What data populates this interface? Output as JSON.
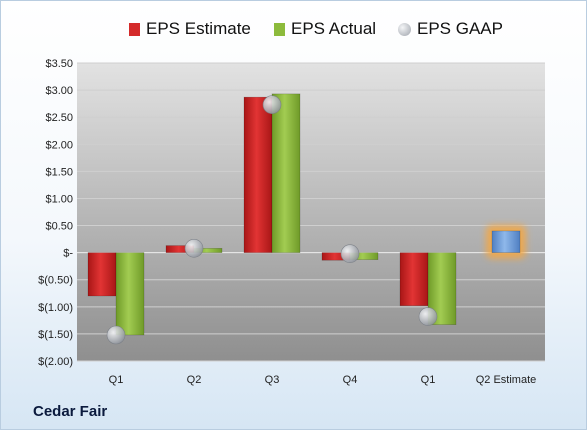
{
  "company": "Cedar Fair",
  "legend": [
    {
      "label": "EPS Estimate",
      "color": "#d42a2a",
      "marker": "bar"
    },
    {
      "label": "EPS Actual",
      "color": "#8dbb3c",
      "marker": "bar"
    },
    {
      "label": "EPS GAAP",
      "color": "#b8bcc4",
      "marker": "dot"
    }
  ],
  "chart_data": {
    "type": "bar",
    "categories": [
      "Q1",
      "Q2",
      "Q3",
      "Q4",
      "Q1",
      "Q2 Estimate"
    ],
    "series": [
      {
        "name": "EPS Estimate",
        "values": [
          -0.8,
          0.13,
          2.87,
          -0.14,
          -0.98,
          null
        ]
      },
      {
        "name": "EPS Actual",
        "values": [
          -1.52,
          0.08,
          2.93,
          -0.13,
          -1.33,
          null
        ]
      },
      {
        "name": "EPS GAAP",
        "marker": "dot",
        "values": [
          -1.52,
          0.08,
          2.73,
          -0.02,
          -1.18,
          null
        ]
      },
      {
        "name": "Q2 Estimate",
        "values": [
          null,
          null,
          null,
          null,
          null,
          0.4
        ]
      }
    ],
    "ylim": [
      -2.0,
      3.5
    ],
    "yticks": [
      3.5,
      3.0,
      2.5,
      2.0,
      1.5,
      1.0,
      0.5,
      0.0,
      -0.5,
      -1.0,
      -1.5,
      -2.0
    ],
    "ytick_labels": [
      "$3.50",
      "$3.00",
      "$2.50",
      "$2.00",
      "$1.50",
      "$1.00",
      "$0.50",
      "$-",
      "$(0.50)",
      "$(1.00)",
      "$(1.50)",
      "$(2.00)"
    ],
    "grid": true,
    "legend_position": "top",
    "colors": {
      "estimate": "#d42a2a",
      "actual": "#8dbb3c",
      "gaap": "#b8bcc4",
      "next_estimate": "#6f9fd8",
      "glow": "#f5a742"
    }
  }
}
